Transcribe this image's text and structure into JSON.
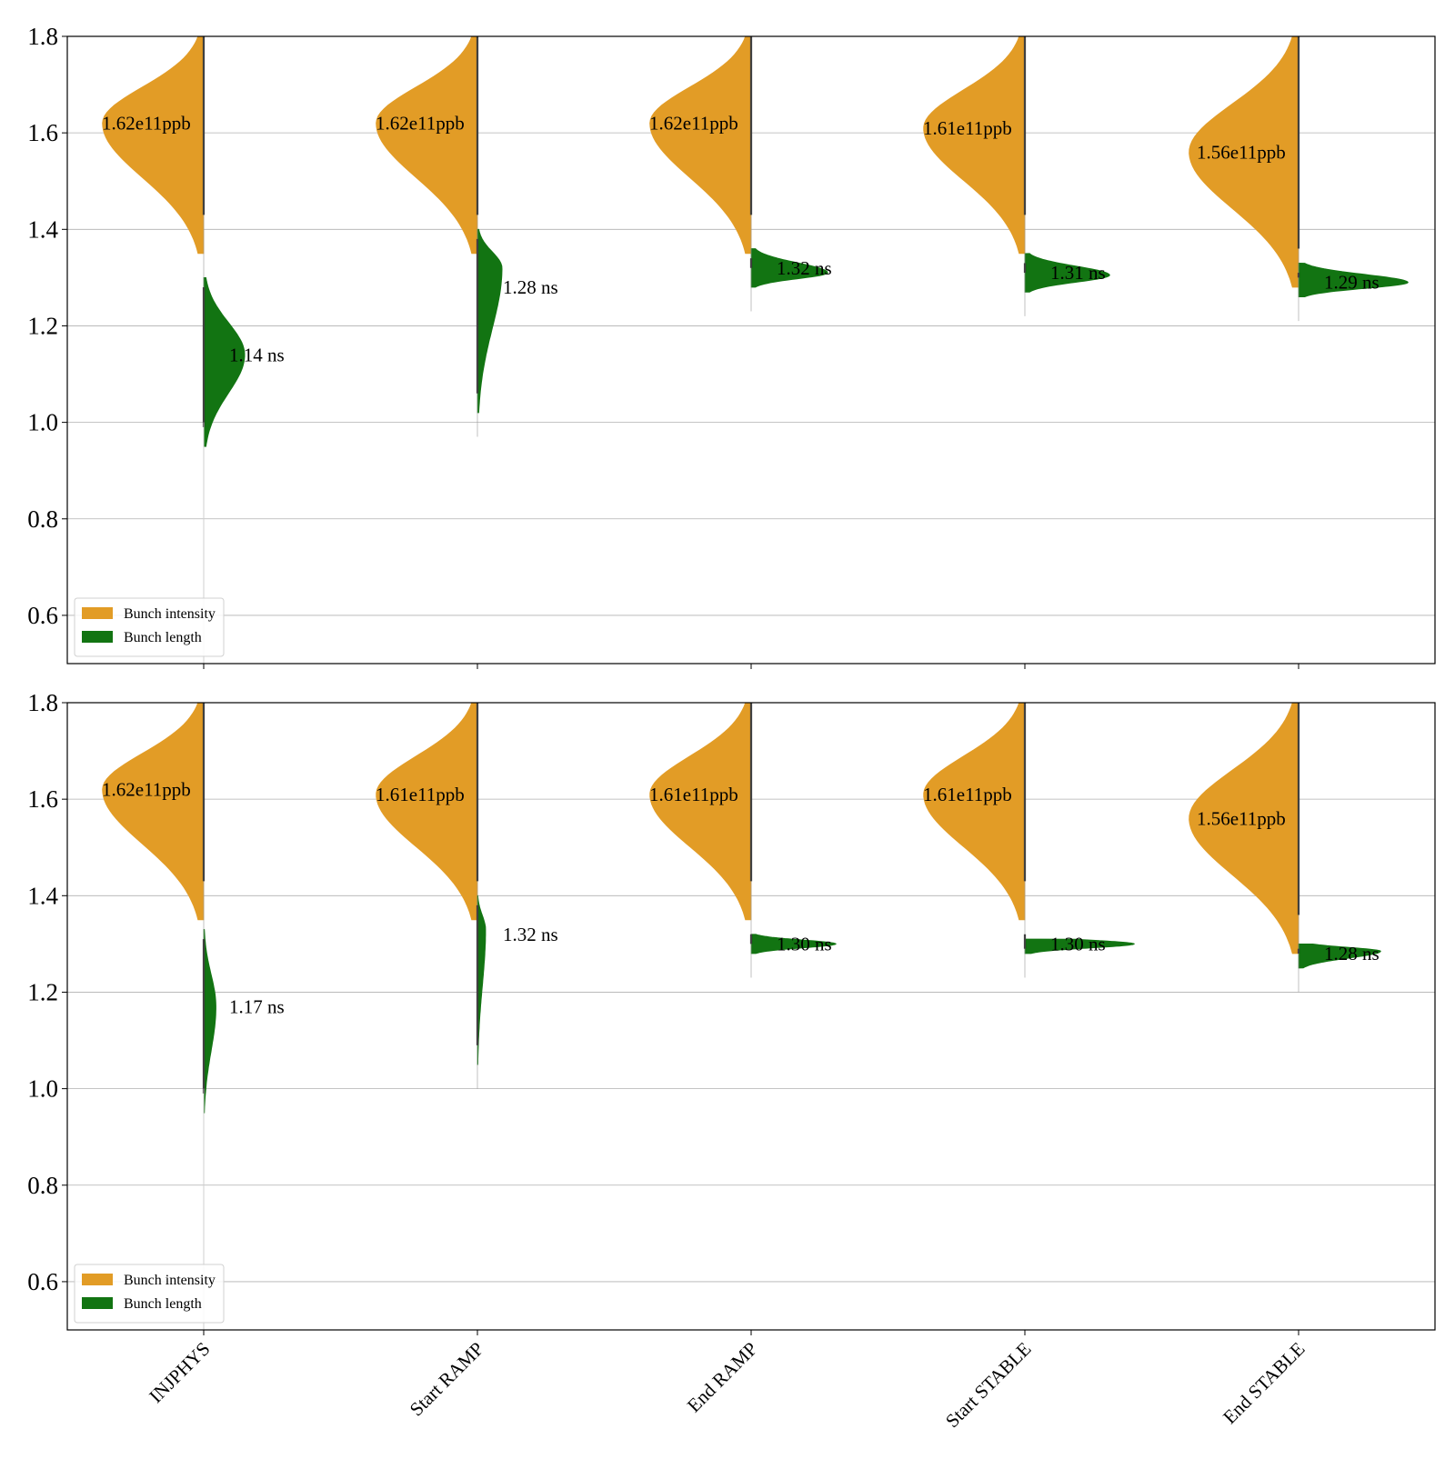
{
  "chart_data": [
    {
      "type": "violin",
      "ylim": [
        0.5,
        1.8
      ],
      "yticks": [
        "0.6",
        "0.8",
        "1.0",
        "1.2",
        "1.4",
        "1.6",
        "1.8"
      ],
      "grid": "horizontal",
      "legend_placement": "lower-left",
      "categories": [
        "INJPHYS",
        "Start RAMP",
        "End RAMP",
        "Start STABLE",
        "End STABLE"
      ],
      "series": [
        {
          "name": "Bunch intensity",
          "color": "#e29c26",
          "side": "left",
          "labels": [
            "1.62e11ppb",
            "1.62e11ppb",
            "1.62e11ppb",
            "1.61e11ppb",
            "1.56e11ppb"
          ],
          "label_y": [
            1.62,
            1.62,
            1.62,
            1.61,
            1.56
          ],
          "range": [
            [
              1.35,
              1.8
            ],
            [
              1.35,
              1.8
            ],
            [
              1.35,
              1.8
            ],
            [
              1.35,
              1.8
            ],
            [
              1.28,
              1.8
            ]
          ],
          "peaks": [
            1.62,
            1.62,
            1.62,
            1.61,
            1.56
          ],
          "max_width": [
            0.37,
            0.37,
            0.37,
            0.37,
            0.4
          ]
        },
        {
          "name": "Bunch length",
          "color": "#127412",
          "side": "right",
          "labels": [
            "1.14 ns",
            "1.28 ns",
            "1.32 ns",
            "1.31 ns",
            "1.29 ns"
          ],
          "label_y": [
            1.14,
            1.28,
            1.32,
            1.31,
            1.29
          ],
          "range": [
            [
              0.95,
              1.3
            ],
            [
              1.02,
              1.4
            ],
            [
              1.28,
              1.36
            ],
            [
              1.27,
              1.35
            ],
            [
              1.26,
              1.33
            ]
          ],
          "peaks": [
            1.14,
            1.32,
            1.31,
            1.305,
            1.29
          ],
          "max_width": [
            0.15,
            0.09,
            0.28,
            0.31,
            0.4
          ]
        }
      ]
    },
    {
      "type": "violin",
      "ylim": [
        0.5,
        1.8
      ],
      "yticks": [
        "0.6",
        "0.8",
        "1.0",
        "1.2",
        "1.4",
        "1.6",
        "1.8"
      ],
      "grid": "horizontal",
      "legend_placement": "lower-left",
      "categories": [
        "INJPHYS",
        "Start RAMP",
        "End RAMP",
        "Start STABLE",
        "End STABLE"
      ],
      "series": [
        {
          "name": "Bunch intensity",
          "color": "#e29c26",
          "side": "left",
          "labels": [
            "1.62e11ppb",
            "1.61e11ppb",
            "1.61e11ppb",
            "1.61e11ppb",
            "1.56e11ppb"
          ],
          "label_y": [
            1.62,
            1.61,
            1.61,
            1.61,
            1.56
          ],
          "range": [
            [
              1.35,
              1.8
            ],
            [
              1.35,
              1.8
            ],
            [
              1.35,
              1.8
            ],
            [
              1.35,
              1.8
            ],
            [
              1.28,
              1.8
            ]
          ],
          "peaks": [
            1.62,
            1.61,
            1.61,
            1.61,
            1.56
          ],
          "max_width": [
            0.37,
            0.37,
            0.37,
            0.37,
            0.4
          ]
        },
        {
          "name": "Bunch length",
          "color": "#127412",
          "side": "right",
          "labels": [
            "1.17 ns",
            "1.32 ns",
            "1.30 ns",
            "1.30 ns",
            "1.28 ns"
          ],
          "label_y": [
            1.17,
            1.32,
            1.3,
            1.3,
            1.28
          ],
          "range": [
            [
              0.95,
              1.33
            ],
            [
              1.05,
              1.4
            ],
            [
              1.28,
              1.32
            ],
            [
              1.28,
              1.31
            ],
            [
              1.25,
              1.3
            ]
          ],
          "peaks": [
            1.17,
            1.33,
            1.3,
            1.3,
            1.285
          ],
          "max_width": [
            0.045,
            0.03,
            0.31,
            0.4,
            0.3
          ]
        }
      ]
    }
  ]
}
